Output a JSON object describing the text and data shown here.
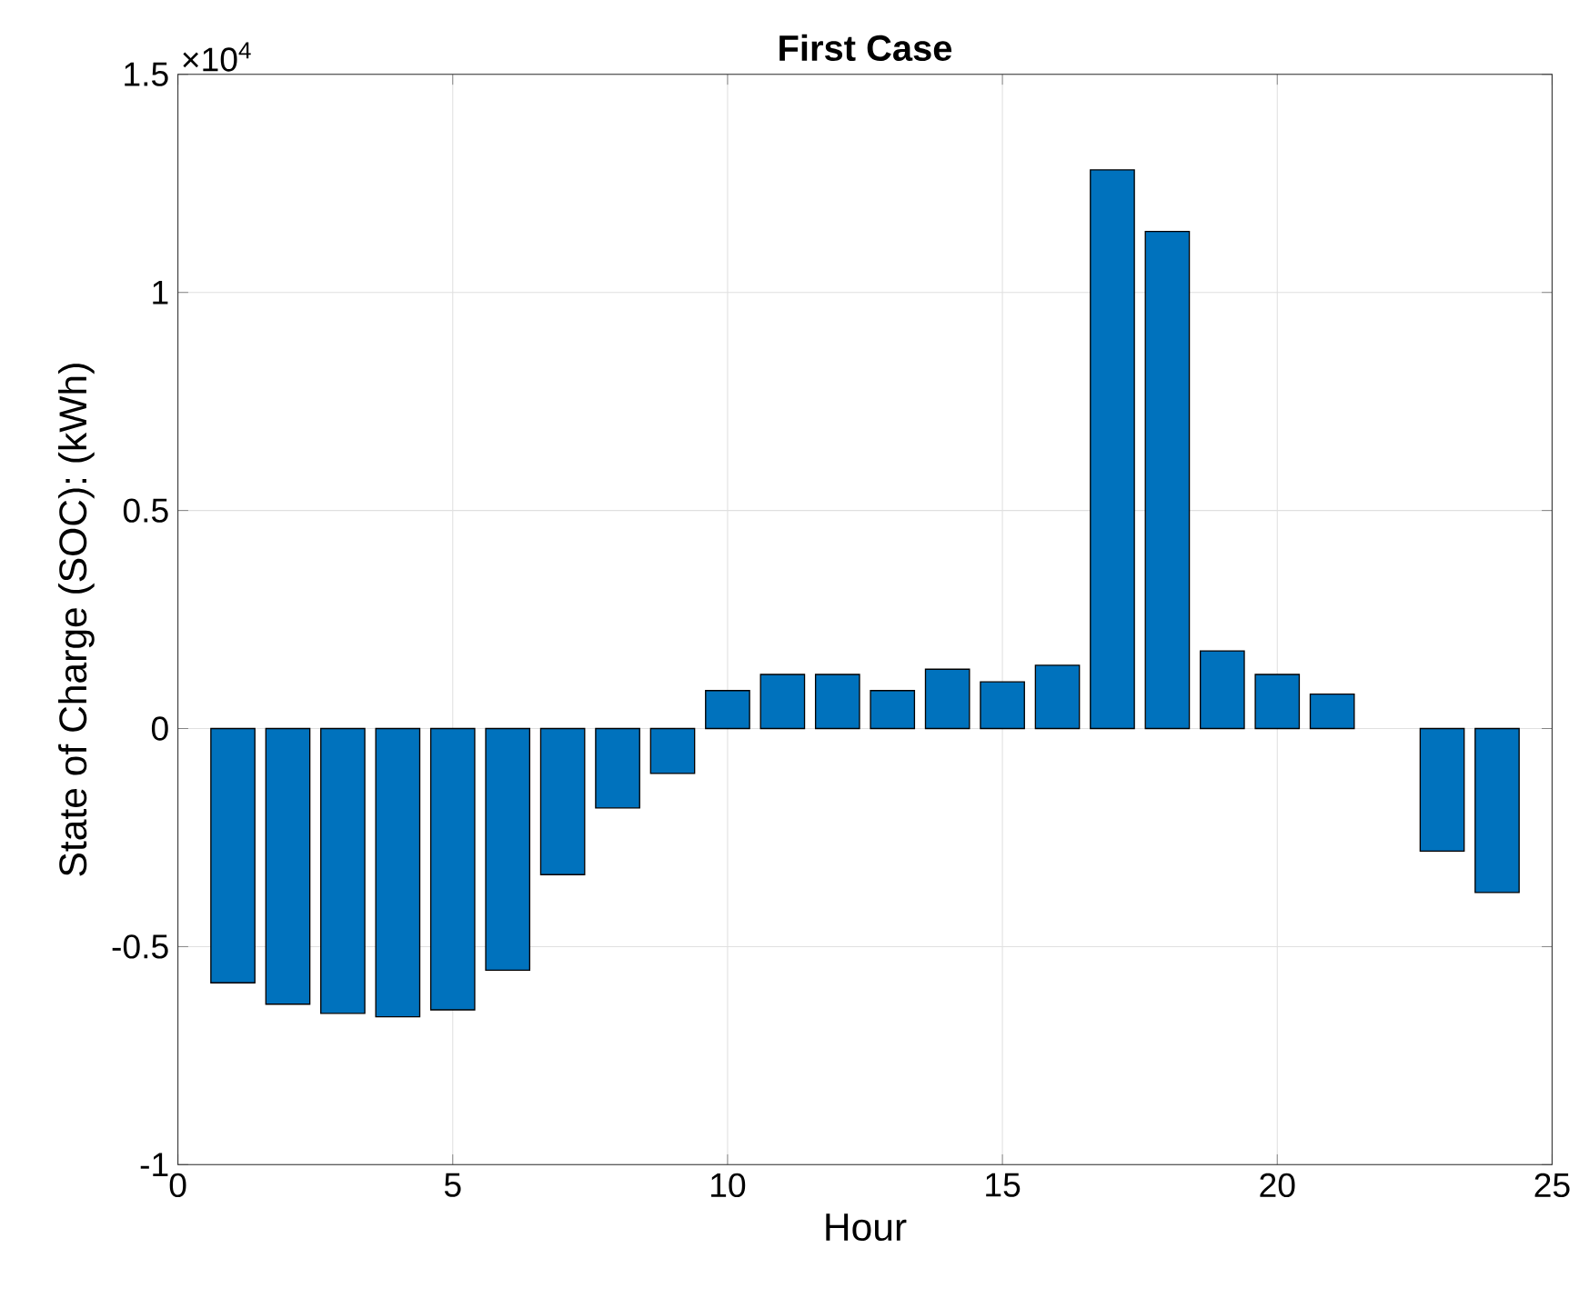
{
  "chart_data": {
    "type": "bar",
    "title": "First Case",
    "xlabel": "Hour",
    "ylabel": "State of Charge (SOC): (kWh)",
    "annotations": [
      "×10$^{4}$"
    ],
    "x": [
      1,
      2,
      3,
      4,
      5,
      6,
      7,
      8,
      9,
      10,
      11,
      12,
      13,
      14,
      15,
      16,
      17,
      18,
      19,
      20,
      21,
      22,
      23,
      24
    ],
    "values": [
      -0.583,
      -0.632,
      -0.653,
      -0.661,
      -0.645,
      -0.554,
      -0.335,
      -0.182,
      -0.103,
      0.087,
      0.124,
      0.124,
      0.087,
      0.136,
      0.107,
      0.145,
      1.281,
      1.14,
      0.178,
      0.124,
      0.079,
      0,
      -0.281,
      -0.376
    ],
    "color": "#0072bd",
    "xlim": [
      0,
      25
    ],
    "xticks": [
      0,
      5,
      10,
      15,
      20,
      25
    ],
    "ylim": [
      -1,
      1.5
    ],
    "yticks": [
      -1,
      -0.5,
      0,
      0.5,
      1,
      1.5
    ],
    "grid": true
  }
}
